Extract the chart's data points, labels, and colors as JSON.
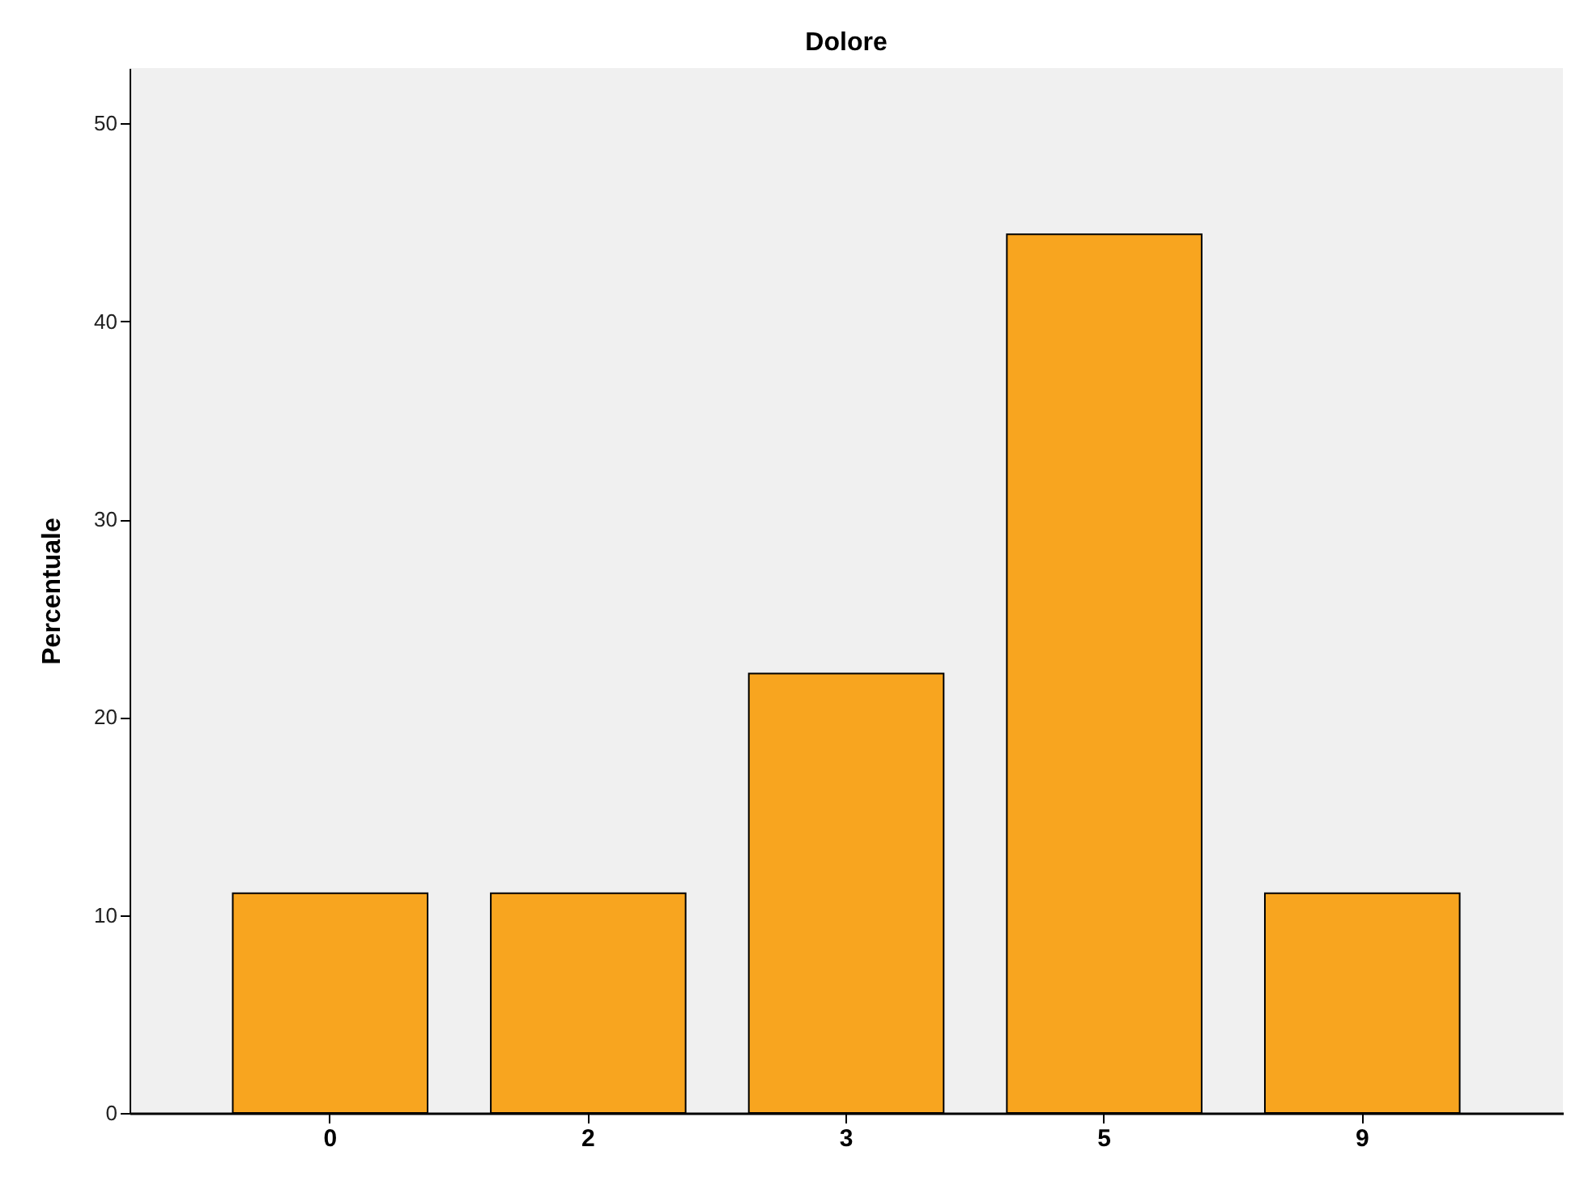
{
  "chart_data": {
    "type": "bar",
    "title": "Dolore",
    "ylabel": "Percentuale",
    "categories": [
      "0",
      "2",
      "3",
      "5",
      "9"
    ],
    "values": [
      11.1,
      11.1,
      22.2,
      44.4,
      11.1
    ],
    "color": "#f8a51f",
    "ylim": [
      0,
      52.8
    ],
    "yticks": [
      0,
      10,
      20,
      30,
      40,
      50
    ],
    "grid": false,
    "legend": false
  }
}
